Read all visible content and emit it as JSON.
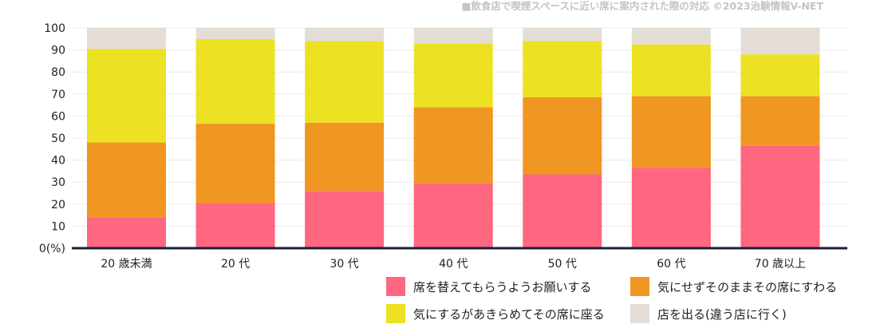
{
  "chart_data": {
    "type": "bar",
    "stacked": true,
    "title": "■飲食店で喫煙スペースに近い席に案内された際の対応 ©2023治験情報V-NET",
    "ylabel": "",
    "xlabel": "",
    "ylim": [
      0,
      100
    ],
    "yticks": [
      "0(%)",
      "10",
      "20",
      "30",
      "40",
      "50",
      "60",
      "70",
      "80",
      "90",
      "100"
    ],
    "categories": [
      "20 歳未満",
      "20 代",
      "30 代",
      "40 代",
      "50 代",
      "60 代",
      "70 歳以上"
    ],
    "series": [
      {
        "name": "席を替えてもらうようお願いする",
        "color": "#ff6680",
        "values": [
          14,
          20.5,
          26,
          29.5,
          33.5,
          36.5,
          46.5
        ]
      },
      {
        "name": "気にせずそのままその席にすわる",
        "color": "#f09623",
        "values": [
          34,
          36,
          31,
          34.5,
          35,
          32.5,
          22.5
        ]
      },
      {
        "name": "気にするがあきらめてその席に座る",
        "color": "#ede123",
        "values": [
          42.5,
          38.5,
          37,
          29,
          25.5,
          23.5,
          19
        ]
      },
      {
        "name": "店を出る(違う店に行く)",
        "color": "#e3ddd6",
        "values": [
          9.5,
          5,
          6,
          7,
          6,
          7.5,
          12
        ]
      }
    ],
    "grid": true,
    "legend_position": "bottom-right"
  }
}
